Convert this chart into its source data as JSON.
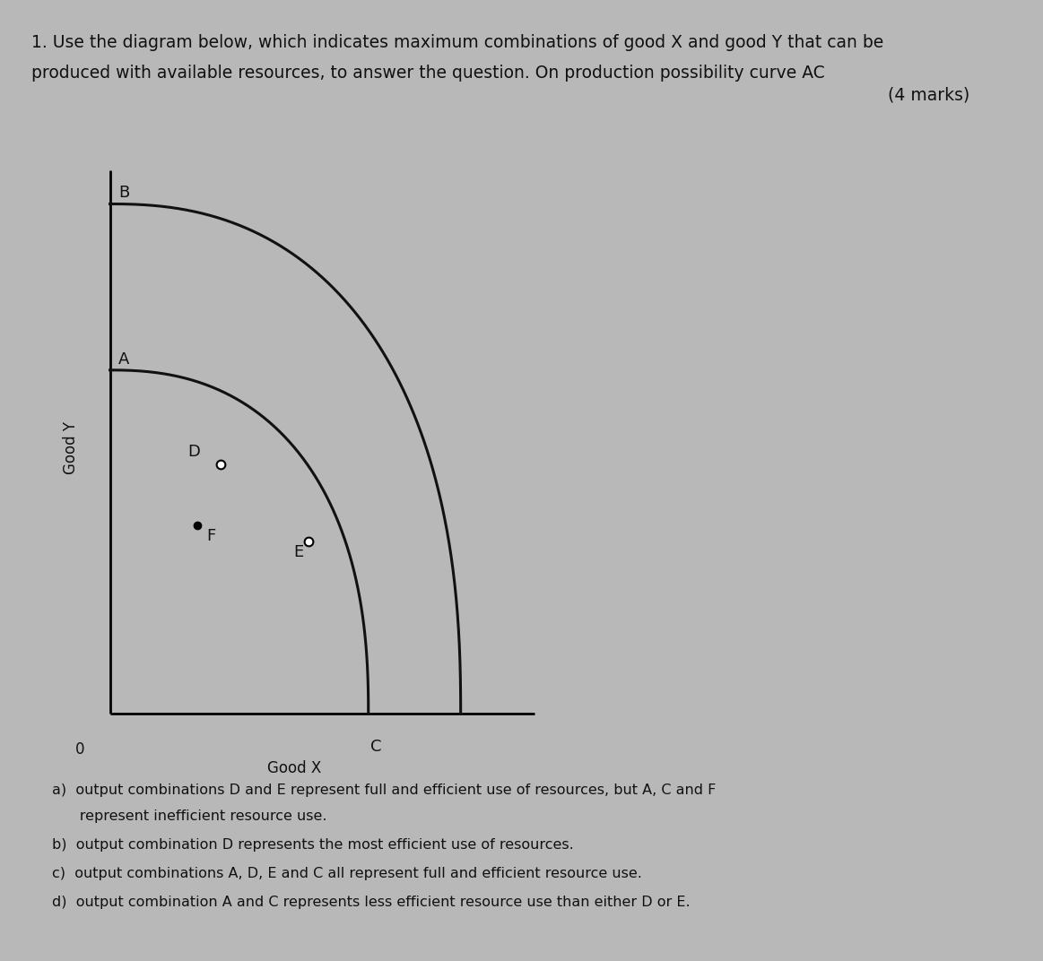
{
  "background_color": "#b8b8b8",
  "title_line1": "1. Use the diagram below, which indicates maximum combinations of good X and good Y that can be",
  "title_line2": "produced with available resources, to answer the question. On production possibility curve AC",
  "marks_text": "(4 marks)",
  "axis_label_x": "Good X",
  "axis_label_y": "Good Y",
  "origin_label": "0",
  "text_color": "#111111",
  "curve_color": "#111111",
  "font_size_title": 13.5,
  "font_size_labels": 12,
  "font_size_points": 13,
  "font_size_answers": 11.5,
  "answer_a1": "a)  output combinations D and E represent full and efficient use of resources, but A, C and F",
  "answer_a2": "      represent inefficient resource use.",
  "answer_b": "b)  output combination D represents the most efficient use of resources.",
  "answer_c": "c)  output combinations A, D, E and C all represent full and efficient resource use.",
  "answer_d": "d)  output combination A and C represents less efficient resource use than either D or E."
}
